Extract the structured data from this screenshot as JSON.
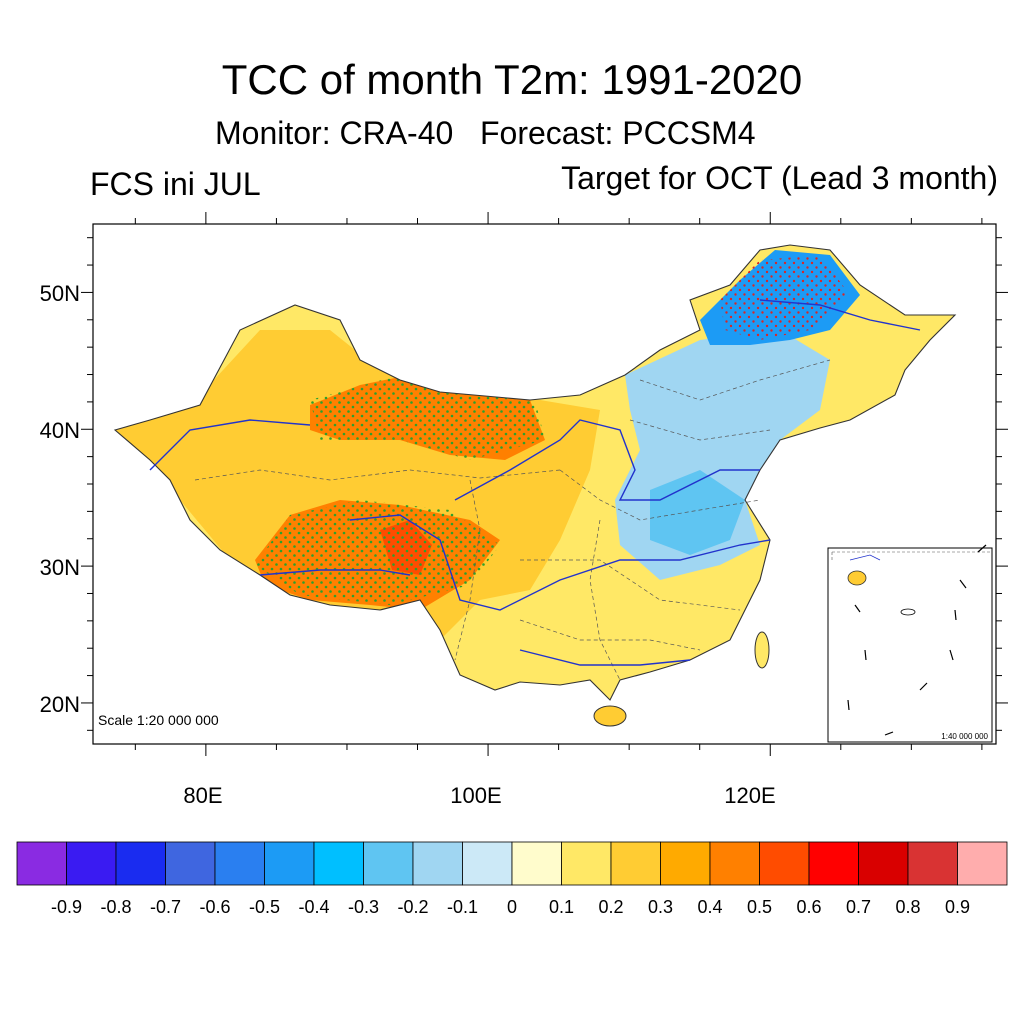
{
  "title": "TCC of month T2m: 1991-2020",
  "subtitle": "Monitor: CRA-40   Forecast: PCCSM4",
  "left_label": "FCS ini JUL",
  "right_label": "Target for OCT (Lead 3 month)",
  "main_scale": "Scale 1:20 000 000",
  "inset_scale": "1:40 000 000",
  "y_ticks": [
    {
      "value": 20,
      "label": "20N"
    },
    {
      "value": 30,
      "label": "30N"
    },
    {
      "value": 40,
      "label": "40N"
    },
    {
      "value": 50,
      "label": "50N"
    }
  ],
  "x_ticks": [
    {
      "value": 80,
      "label": "80E"
    },
    {
      "value": 100,
      "label": "100E"
    },
    {
      "value": 120,
      "label": "120E"
    }
  ],
  "map_extent": {
    "lon": [
      72,
      136
    ],
    "lat": [
      17,
      55
    ]
  },
  "colorbar": {
    "colors": [
      "#8a2be2",
      "#3a1bf2",
      "#1a2cf0",
      "#3f66e0",
      "#2a7ff0",
      "#1c9bf5",
      "#00bfff",
      "#5fc5f2",
      "#a0d6f2",
      "#cce9f7",
      "#fffccc",
      "#ffe866",
      "#ffcc33",
      "#ffaa00",
      "#ff8000",
      "#ff4c00",
      "#ff0000",
      "#d90000",
      "#d93333",
      "#ffadad"
    ],
    "labels": [
      "-0.9",
      "-0.8",
      "-0.7",
      "-0.6",
      "-0.5",
      "-0.4",
      "-0.3",
      "-0.2",
      "-0.1",
      "0",
      "0.1",
      "0.2",
      "0.3",
      "0.4",
      "0.5",
      "0.6",
      "0.7",
      "0.8",
      "0.9"
    ]
  },
  "colors": {
    "china_base": "#ffe866",
    "west_region": "#ffcc33",
    "strong_positive": "#ff8000",
    "peak_positive": "#ff4c00",
    "northeast_negative": "#1c9bf5",
    "east_negative": "#a0d6f2",
    "stipple_positive": "#2ca02c",
    "stipple_negative": "#d62728",
    "river": "#2233cc"
  }
}
